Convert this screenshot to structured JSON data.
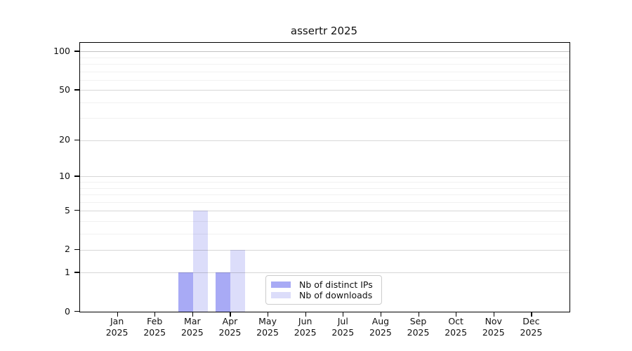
{
  "title": "assertr 2025",
  "chart_data": {
    "type": "bar",
    "title": "assertr 2025",
    "categories": [
      "Jan",
      "Feb",
      "Mar",
      "Apr",
      "May",
      "Jun",
      "Jul",
      "Aug",
      "Sep",
      "Oct",
      "Nov",
      "Dec"
    ],
    "year_label": "2025",
    "series": [
      {
        "name": "Nb of distinct IPs",
        "color": "#a8aaf5",
        "values": [
          0,
          0,
          1,
          1,
          0,
          0,
          0,
          0,
          0,
          0,
          0,
          0
        ]
      },
      {
        "name": "Nb of downloads",
        "color": "#dcddfa",
        "values": [
          0,
          0,
          5,
          2,
          0,
          0,
          0,
          0,
          0,
          0,
          0,
          0
        ]
      }
    ],
    "xlabel": "",
    "ylabel": "",
    "yscale": "log1p",
    "ylim": [
      0,
      117
    ],
    "ytick_values": [
      100,
      50,
      20,
      10,
      5,
      2,
      1,
      0
    ],
    "ytick_labels": [
      "100",
      "50",
      "20",
      "10",
      "5",
      "2",
      "1",
      "0"
    ],
    "minor_ytick_values": [
      3,
      4,
      6,
      7,
      8,
      9,
      30,
      40,
      60,
      70,
      80,
      90
    ],
    "grid": true,
    "legend_position": "lower center",
    "colors": {
      "distinct_ips": "#a8aaf5",
      "downloads": "#dcddfa",
      "spine": "#000000",
      "background": "#ffffff"
    }
  }
}
